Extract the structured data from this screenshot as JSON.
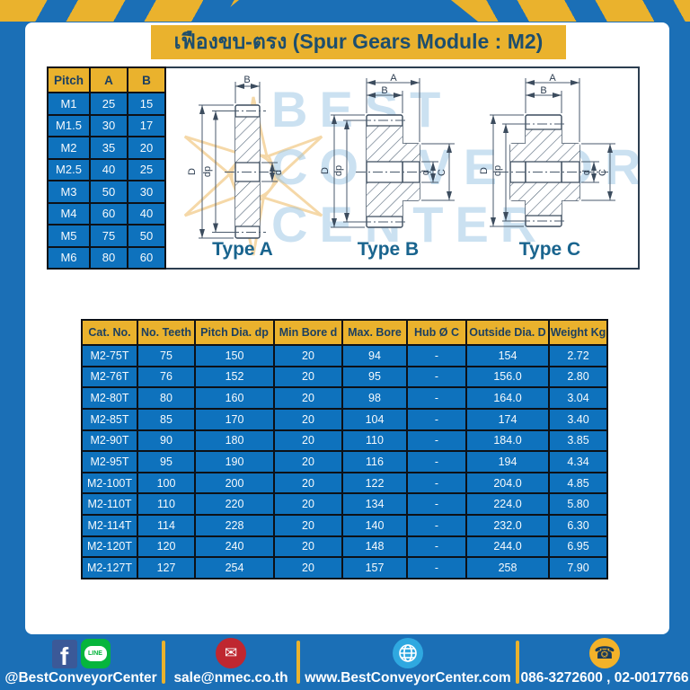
{
  "header": {
    "title": "เฟืองขบ-ตรง (Spur Gears Module : M2)"
  },
  "pitch_table": {
    "headers": [
      "Pitch",
      "A",
      "B"
    ],
    "rows": [
      [
        "M1",
        "25",
        "15"
      ],
      [
        "M1.5",
        "30",
        "17"
      ],
      [
        "M2",
        "35",
        "20"
      ],
      [
        "M2.5",
        "40",
        "25"
      ],
      [
        "M3",
        "50",
        "30"
      ],
      [
        "M4",
        "60",
        "40"
      ],
      [
        "M5",
        "75",
        "50"
      ],
      [
        "M6",
        "80",
        "60"
      ]
    ]
  },
  "drawings": {
    "watermark": {
      "line1": "BEST",
      "line2": "CONVEYOR",
      "line3": "CENTER"
    },
    "types": [
      {
        "label": "Type A"
      },
      {
        "label": "Type B"
      },
      {
        "label": "Type C"
      }
    ],
    "dim_labels": {
      "A": "A",
      "B": "B",
      "C": "C",
      "D": "D",
      "d": "d",
      "dp": "dp"
    }
  },
  "main_table": {
    "headers": [
      "Cat. No.",
      "No. Teeth",
      "Pitch Dia. dp",
      "Min Bore d",
      "Max. Bore",
      "Hub Ø C",
      "Outside Dia. D",
      "Weight Kg"
    ],
    "rows": [
      [
        "M2-75T",
        "75",
        "150",
        "20",
        "94",
        "-",
        "154",
        "2.72"
      ],
      [
        "M2-76T",
        "76",
        "152",
        "20",
        "95",
        "-",
        "156.0",
        "2.80"
      ],
      [
        "M2-80T",
        "80",
        "160",
        "20",
        "98",
        "-",
        "164.0",
        "3.04"
      ],
      [
        "M2-85T",
        "85",
        "170",
        "20",
        "104",
        "-",
        "174",
        "3.40"
      ],
      [
        "M2-90T",
        "90",
        "180",
        "20",
        "110",
        "-",
        "184.0",
        "3.85"
      ],
      [
        "M2-95T",
        "95",
        "190",
        "20",
        "116",
        "-",
        "194",
        "4.34"
      ],
      [
        "M2-100T",
        "100",
        "200",
        "20",
        "122",
        "-",
        "204.0",
        "4.85"
      ],
      [
        "M2-110T",
        "110",
        "220",
        "20",
        "134",
        "-",
        "224.0",
        "5.80"
      ],
      [
        "M2-114T",
        "114",
        "228",
        "20",
        "140",
        "-",
        "232.0",
        "6.30"
      ],
      [
        "M2-120T",
        "120",
        "240",
        "20",
        "148",
        "-",
        "244.0",
        "6.95"
      ],
      [
        "M2-127T",
        "127",
        "254",
        "20",
        "157",
        "-",
        "258",
        "7.90"
      ]
    ]
  },
  "footer": {
    "facebook_letter": "f",
    "line_label": "LINE",
    "social_handle": "@BestConveyorCenter",
    "email": "sale@nmec.co.th",
    "email_glyph": "✉",
    "website": "www.BestConveyorCenter.com",
    "phone": "086-3272600 , 02-0017766",
    "phone_glyph": "☎"
  },
  "colors": {
    "page_blue": "#1b6fb6",
    "accent_yellow": "#eab22d",
    "row_blue": "#0e72bd",
    "header_text_blue": "#1c3f60",
    "title_text_blue": "#1d4e6e",
    "border_dark": "#0d1117",
    "type_label_blue": "#19648e"
  }
}
